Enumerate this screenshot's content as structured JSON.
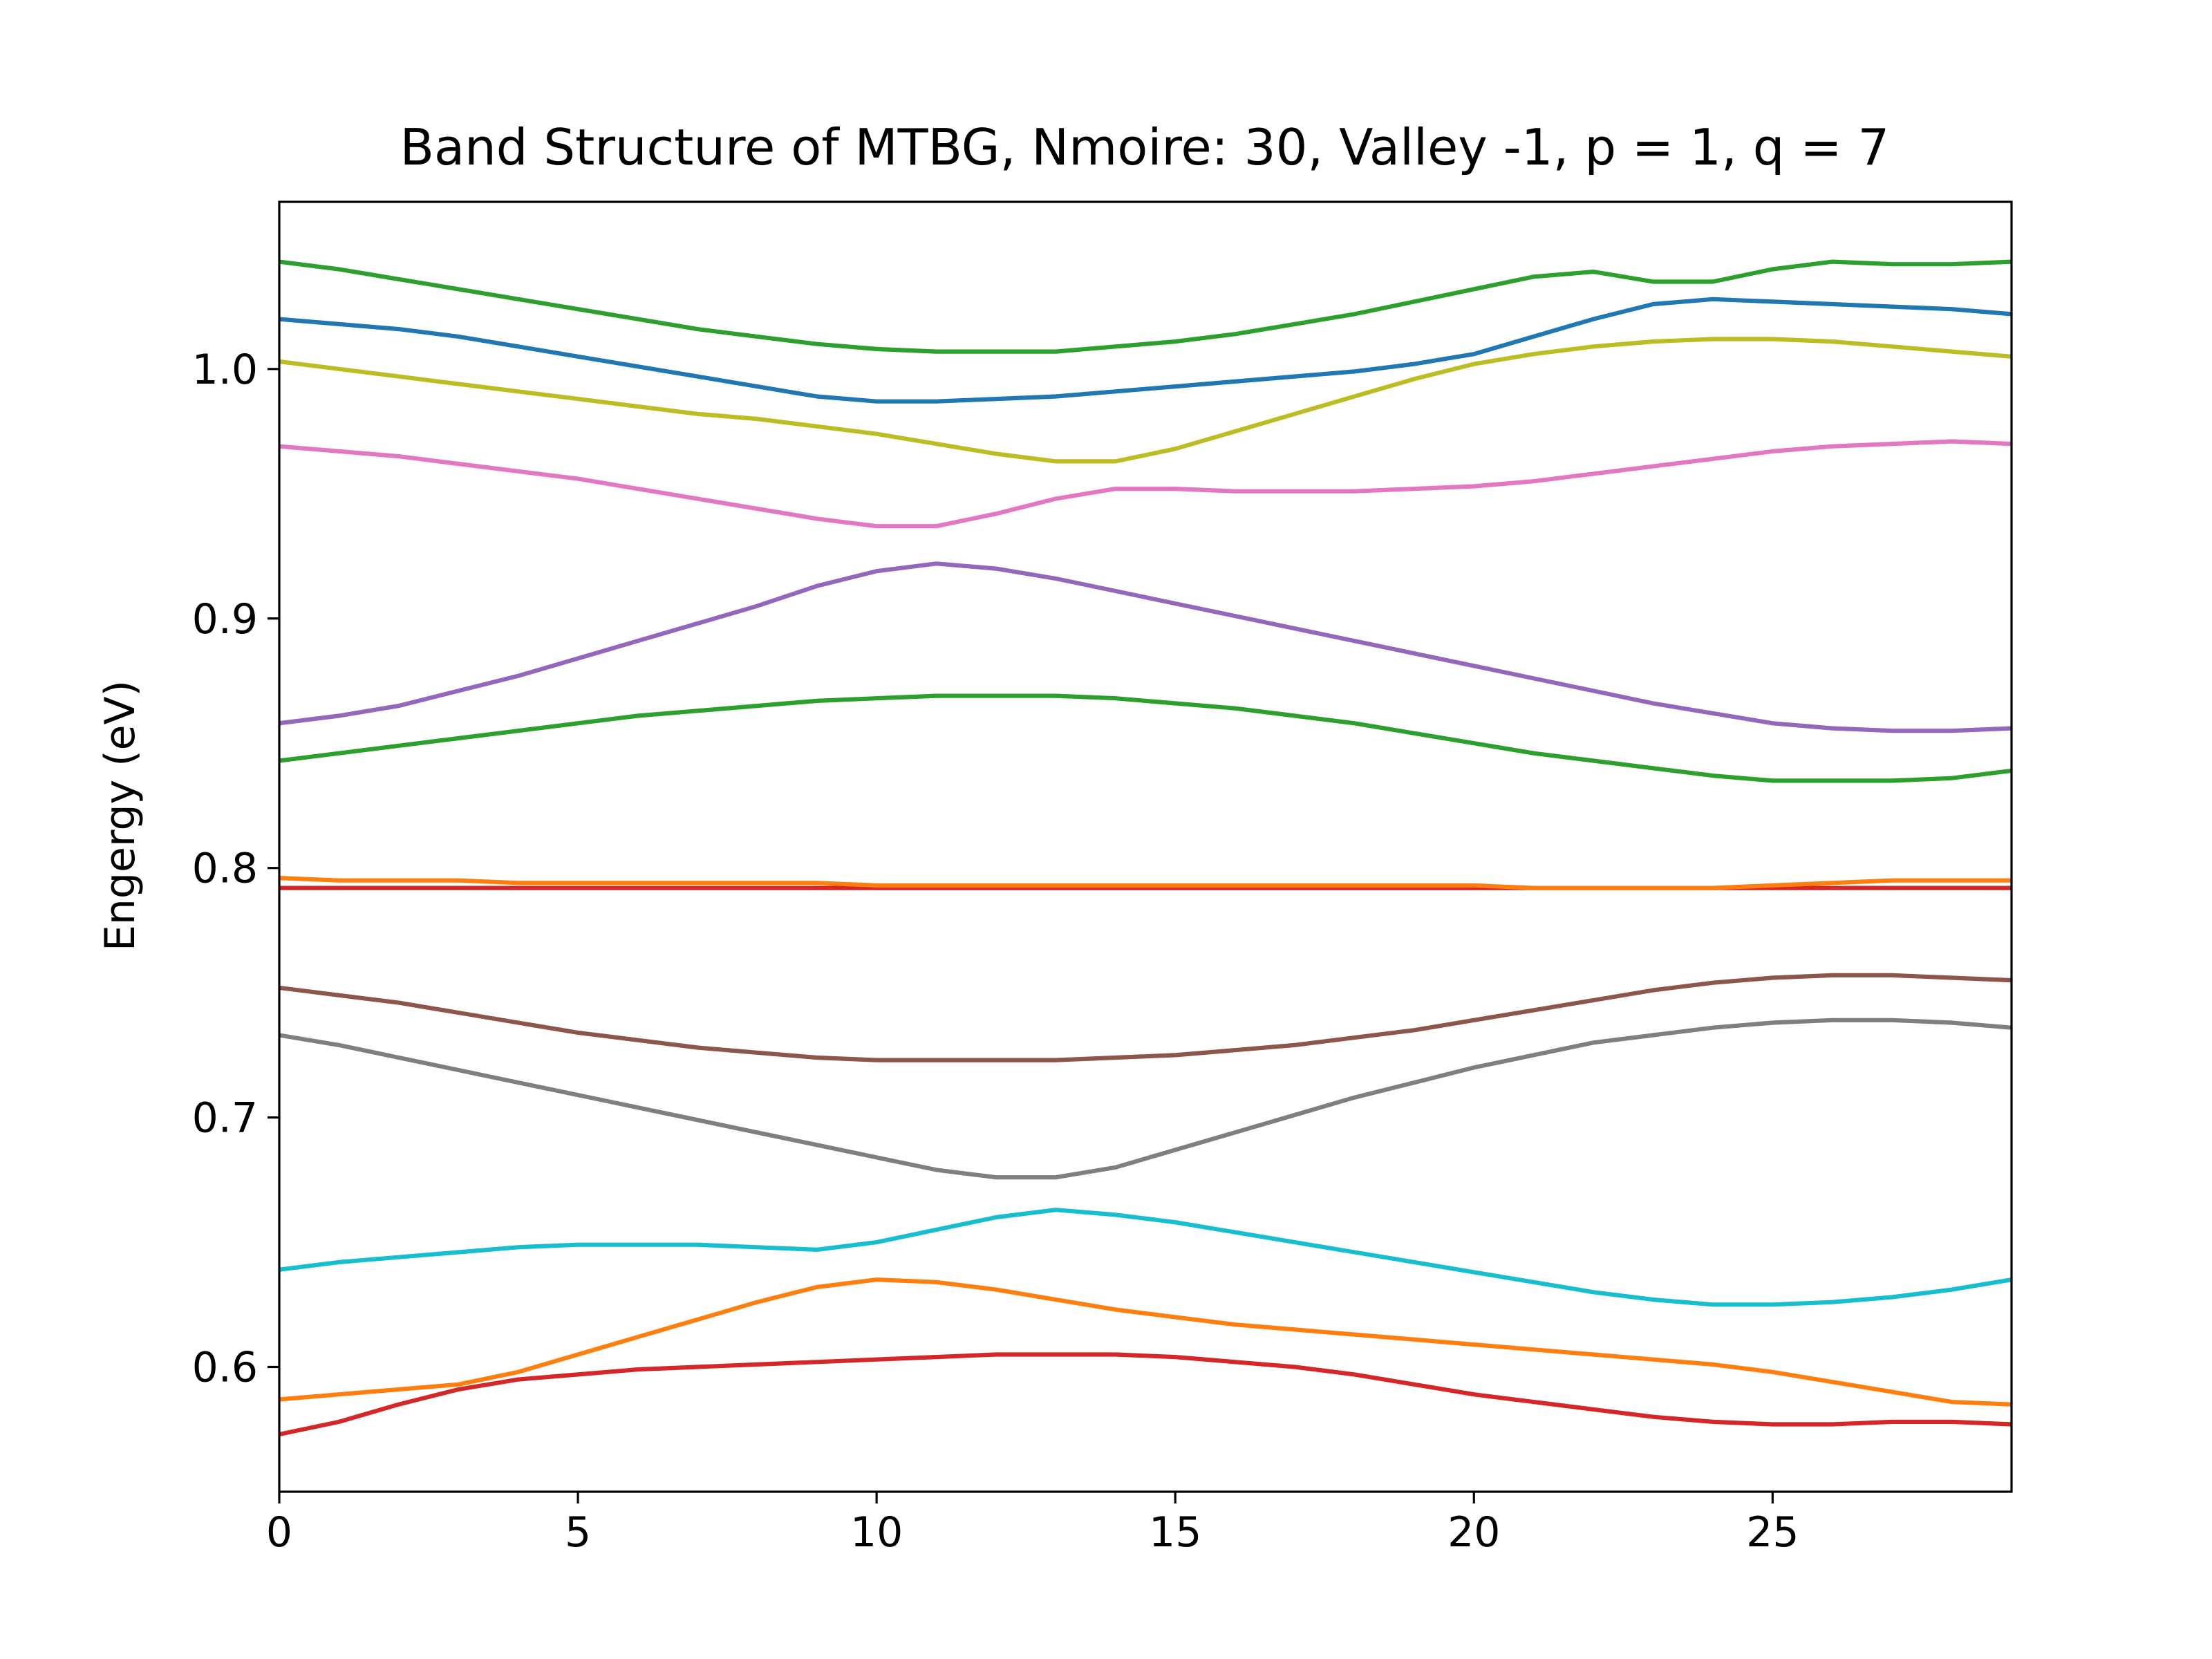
{
  "chart_data": {
    "type": "line",
    "title": "Band Structure of MTBG, Nmoire: 30, Valley -1, p = 1, q = 7",
    "xlabel": "",
    "ylabel": "Engergy (eV)",
    "xlim": [
      0,
      29
    ],
    "ylim": [
      0.55,
      1.067
    ],
    "xticks": [
      0,
      5,
      10,
      15,
      20,
      25
    ],
    "xtick_labels": [
      "0",
      "5",
      "10",
      "15",
      "20",
      "25"
    ],
    "yticks": [
      0.6,
      0.7,
      0.8,
      0.9,
      1.0
    ],
    "ytick_labels": [
      "0.6",
      "0.7",
      "0.8",
      "0.9",
      "1.0"
    ],
    "grid": false,
    "legend": "none",
    "x": [
      0,
      1,
      2,
      3,
      4,
      5,
      6,
      7,
      8,
      9,
      10,
      11,
      12,
      13,
      14,
      15,
      16,
      17,
      18,
      19,
      20,
      21,
      22,
      23,
      24,
      25,
      26,
      27,
      28,
      29
    ],
    "series": [
      {
        "color": "#d62728",
        "values": [
          0.573,
          0.578,
          0.585,
          0.591,
          0.595,
          0.597,
          0.599,
          0.6,
          0.601,
          0.602,
          0.603,
          0.604,
          0.605,
          0.605,
          0.605,
          0.604,
          0.602,
          0.6,
          0.597,
          0.593,
          0.589,
          0.586,
          0.583,
          0.58,
          0.578,
          0.577,
          0.577,
          0.578,
          0.578,
          0.577
        ]
      },
      {
        "color": "#ff7f0e",
        "values": [
          0.587,
          0.589,
          0.591,
          0.593,
          0.598,
          0.605,
          0.612,
          0.619,
          0.626,
          0.632,
          0.635,
          0.634,
          0.631,
          0.627,
          0.623,
          0.62,
          0.617,
          0.615,
          0.613,
          0.611,
          0.609,
          0.607,
          0.605,
          0.603,
          0.601,
          0.598,
          0.594,
          0.59,
          0.586,
          0.585
        ]
      },
      {
        "color": "#17becf",
        "values": [
          0.639,
          0.642,
          0.644,
          0.646,
          0.648,
          0.649,
          0.649,
          0.649,
          0.648,
          0.647,
          0.65,
          0.655,
          0.66,
          0.663,
          0.661,
          0.658,
          0.654,
          0.65,
          0.646,
          0.642,
          0.638,
          0.634,
          0.63,
          0.627,
          0.625,
          0.625,
          0.626,
          0.628,
          0.631,
          0.635
        ]
      },
      {
        "color": "#7f7f7f",
        "values": [
          0.733,
          0.729,
          0.724,
          0.719,
          0.714,
          0.709,
          0.704,
          0.699,
          0.694,
          0.689,
          0.684,
          0.679,
          0.676,
          0.676,
          0.68,
          0.687,
          0.694,
          0.701,
          0.708,
          0.714,
          0.72,
          0.725,
          0.73,
          0.733,
          0.736,
          0.738,
          0.739,
          0.739,
          0.738,
          0.736
        ]
      },
      {
        "color": "#8c564b",
        "values": [
          0.752,
          0.749,
          0.746,
          0.742,
          0.738,
          0.734,
          0.731,
          0.728,
          0.726,
          0.724,
          0.723,
          0.723,
          0.723,
          0.723,
          0.724,
          0.725,
          0.727,
          0.729,
          0.732,
          0.735,
          0.739,
          0.743,
          0.747,
          0.751,
          0.754,
          0.756,
          0.757,
          0.757,
          0.756,
          0.755
        ]
      },
      {
        "color": "#d62728",
        "values": [
          0.792,
          0.792,
          0.792,
          0.792,
          0.792,
          0.792,
          0.792,
          0.792,
          0.792,
          0.792,
          0.792,
          0.792,
          0.792,
          0.792,
          0.792,
          0.792,
          0.792,
          0.792,
          0.792,
          0.792,
          0.792,
          0.792,
          0.792,
          0.792,
          0.792,
          0.792,
          0.792,
          0.792,
          0.792,
          0.792
        ]
      },
      {
        "color": "#ff7f0e",
        "values": [
          0.796,
          0.795,
          0.795,
          0.795,
          0.794,
          0.794,
          0.794,
          0.794,
          0.794,
          0.794,
          0.793,
          0.793,
          0.793,
          0.793,
          0.793,
          0.793,
          0.793,
          0.793,
          0.793,
          0.793,
          0.793,
          0.792,
          0.792,
          0.792,
          0.792,
          0.793,
          0.794,
          0.795,
          0.795,
          0.795
        ]
      },
      {
        "color": "#2ca02c",
        "values": [
          0.843,
          0.846,
          0.849,
          0.852,
          0.855,
          0.858,
          0.861,
          0.863,
          0.865,
          0.867,
          0.868,
          0.869,
          0.869,
          0.869,
          0.868,
          0.866,
          0.864,
          0.861,
          0.858,
          0.854,
          0.85,
          0.846,
          0.843,
          0.84,
          0.837,
          0.835,
          0.835,
          0.835,
          0.836,
          0.839
        ]
      },
      {
        "color": "#9467bd",
        "values": [
          0.858,
          0.861,
          0.865,
          0.871,
          0.877,
          0.884,
          0.891,
          0.898,
          0.905,
          0.913,
          0.919,
          0.922,
          0.92,
          0.916,
          0.911,
          0.906,
          0.901,
          0.896,
          0.891,
          0.886,
          0.881,
          0.876,
          0.871,
          0.866,
          0.862,
          0.858,
          0.856,
          0.855,
          0.855,
          0.856
        ]
      },
      {
        "color": "#e377c2",
        "values": [
          0.969,
          0.967,
          0.965,
          0.962,
          0.959,
          0.956,
          0.952,
          0.948,
          0.944,
          0.94,
          0.937,
          0.937,
          0.942,
          0.948,
          0.952,
          0.952,
          0.951,
          0.951,
          0.951,
          0.952,
          0.953,
          0.955,
          0.958,
          0.961,
          0.964,
          0.967,
          0.969,
          0.97,
          0.971,
          0.97
        ]
      },
      {
        "color": "#bcbd22",
        "values": [
          1.003,
          1.0,
          0.997,
          0.994,
          0.991,
          0.988,
          0.985,
          0.982,
          0.98,
          0.977,
          0.974,
          0.97,
          0.966,
          0.963,
          0.963,
          0.968,
          0.975,
          0.982,
          0.989,
          0.996,
          1.002,
          1.006,
          1.009,
          1.011,
          1.012,
          1.012,
          1.011,
          1.009,
          1.007,
          1.005
        ]
      },
      {
        "color": "#1f77b4",
        "values": [
          1.02,
          1.018,
          1.016,
          1.013,
          1.009,
          1.005,
          1.001,
          0.997,
          0.993,
          0.989,
          0.987,
          0.987,
          0.988,
          0.989,
          0.991,
          0.993,
          0.995,
          0.997,
          0.999,
          1.002,
          1.006,
          1.013,
          1.02,
          1.026,
          1.028,
          1.027,
          1.026,
          1.025,
          1.024,
          1.022
        ]
      },
      {
        "color": "#2ca02c",
        "values": [
          1.043,
          1.04,
          1.036,
          1.032,
          1.028,
          1.024,
          1.02,
          1.016,
          1.013,
          1.01,
          1.008,
          1.007,
          1.007,
          1.007,
          1.009,
          1.011,
          1.014,
          1.018,
          1.022,
          1.027,
          1.032,
          1.037,
          1.039,
          1.035,
          1.035,
          1.04,
          1.043,
          1.042,
          1.042,
          1.043
        ]
      }
    ]
  }
}
